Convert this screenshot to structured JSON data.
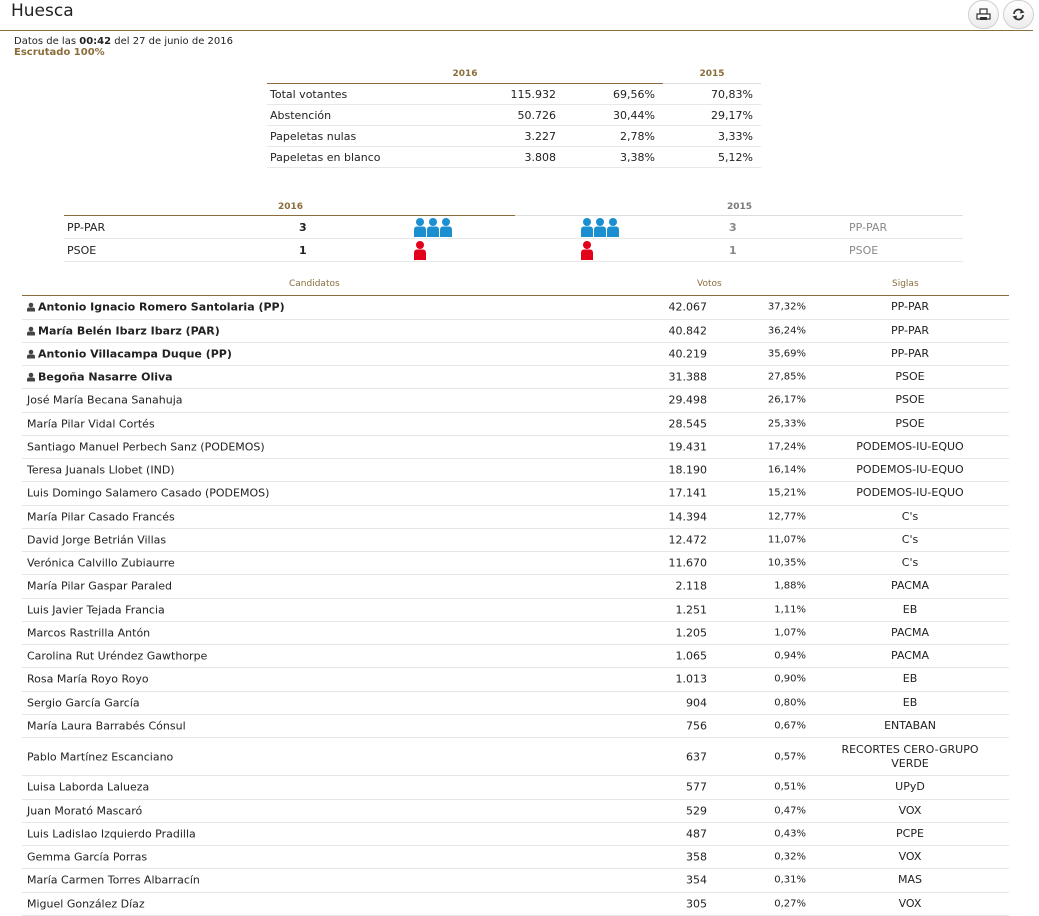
{
  "header": {
    "title": "Huesca",
    "print_icon": "printer-icon",
    "refresh_icon": "refresh-icon"
  },
  "meta": {
    "prefix": "Datos de las",
    "time": "00:42",
    "suffix": "del 27 de junio de 2016",
    "status": "Escrutado 100%"
  },
  "summary": {
    "year_current": "2016",
    "year_previous": "2015",
    "rows": [
      {
        "label": "Total votantes",
        "value": "115.932",
        "pct": "69,56%",
        "pct_prev": "70,83%"
      },
      {
        "label": "Abstención",
        "value": "50.726",
        "pct": "30,44%",
        "pct_prev": "29,17%"
      },
      {
        "label": "Papeletas nulas",
        "value": "3.227",
        "pct": "2,78%",
        "pct_prev": "3,33%"
      },
      {
        "label": "Papeletas en blanco",
        "value": "3.808",
        "pct": "3,38%",
        "pct_prev": "5,12%"
      }
    ]
  },
  "seats": {
    "year_current": "2016",
    "year_previous": "2015",
    "colors": {
      "PP-PAR": "#1b8fd0",
      "PSOE": "#e3001b"
    },
    "rows": [
      {
        "party": "PP-PAR",
        "seats": "3",
        "icons": 3,
        "seats_prev": "3",
        "icons_prev": 3,
        "party_prev": "PP-PAR"
      },
      {
        "party": "PSOE",
        "seats": "1",
        "icons": 1,
        "seats_prev": "1",
        "icons_prev": 1,
        "party_prev": "PSOE"
      }
    ]
  },
  "candidates": {
    "headers": {
      "name": "Candidatos",
      "votes": "Votos",
      "party": "Siglas"
    },
    "rows": [
      {
        "name": "Antonio Ignacio Romero Santolaria (PP)",
        "votes": "42.067",
        "pct": "37,32%",
        "party": "PP-PAR",
        "elected": true
      },
      {
        "name": "María Belén Ibarz Ibarz (PAR)",
        "votes": "40.842",
        "pct": "36,24%",
        "party": "PP-PAR",
        "elected": true
      },
      {
        "name": "Antonio Villacampa Duque (PP)",
        "votes": "40.219",
        "pct": "35,69%",
        "party": "PP-PAR",
        "elected": true
      },
      {
        "name": "Begoña Nasarre Oliva",
        "votes": "31.388",
        "pct": "27,85%",
        "party": "PSOE",
        "elected": true
      },
      {
        "name": "José María Becana Sanahuja",
        "votes": "29.498",
        "pct": "26,17%",
        "party": "PSOE",
        "elected": false
      },
      {
        "name": "María Pilar Vidal Cortés",
        "votes": "28.545",
        "pct": "25,33%",
        "party": "PSOE",
        "elected": false
      },
      {
        "name": "Santiago Manuel Perbech Sanz (PODEMOS)",
        "votes": "19.431",
        "pct": "17,24%",
        "party": "PODEMOS-IU-EQUO",
        "elected": false
      },
      {
        "name": "Teresa Juanals Llobet (IND)",
        "votes": "18.190",
        "pct": "16,14%",
        "party": "PODEMOS-IU-EQUO",
        "elected": false
      },
      {
        "name": "Luis Domingo Salamero Casado (PODEMOS)",
        "votes": "17.141",
        "pct": "15,21%",
        "party": "PODEMOS-IU-EQUO",
        "elected": false
      },
      {
        "name": "María Pilar Casado Francés",
        "votes": "14.394",
        "pct": "12,77%",
        "party": "C's",
        "elected": false
      },
      {
        "name": "David Jorge Betrián Villas",
        "votes": "12.472",
        "pct": "11,07%",
        "party": "C's",
        "elected": false
      },
      {
        "name": "Verónica Calvillo Zubiaurre",
        "votes": "11.670",
        "pct": "10,35%",
        "party": "C's",
        "elected": false
      },
      {
        "name": "María Pilar Gaspar Paraled",
        "votes": "2.118",
        "pct": "1,88%",
        "party": "PACMA",
        "elected": false
      },
      {
        "name": "Luis Javier Tejada Francia",
        "votes": "1.251",
        "pct": "1,11%",
        "party": "EB",
        "elected": false
      },
      {
        "name": "Marcos Rastrilla Antón",
        "votes": "1.205",
        "pct": "1,07%",
        "party": "PACMA",
        "elected": false
      },
      {
        "name": "Carolina Rut Uréndez Gawthorpe",
        "votes": "1.065",
        "pct": "0,94%",
        "party": "PACMA",
        "elected": false
      },
      {
        "name": "Rosa María Royo Royo",
        "votes": "1.013",
        "pct": "0,90%",
        "party": "EB",
        "elected": false
      },
      {
        "name": "Sergio García García",
        "votes": "904",
        "pct": "0,80%",
        "party": "EB",
        "elected": false
      },
      {
        "name": "María Laura Barrabés Cónsul",
        "votes": "756",
        "pct": "0,67%",
        "party": "ENTABAN",
        "elected": false
      },
      {
        "name": "Pablo Martínez Escanciano",
        "votes": "637",
        "pct": "0,57%",
        "party": "RECORTES CERO-GRUPO VERDE",
        "elected": false
      },
      {
        "name": "Luisa Laborda Lalueza",
        "votes": "577",
        "pct": "0,51%",
        "party": "UPyD",
        "elected": false
      },
      {
        "name": "Juan Morató Mascaró",
        "votes": "529",
        "pct": "0,47%",
        "party": "VOX",
        "elected": false
      },
      {
        "name": "Luis Ladislao Izquierdo Pradilla",
        "votes": "487",
        "pct": "0,43%",
        "party": "PCPE",
        "elected": false
      },
      {
        "name": "Gemma García Porras",
        "votes": "358",
        "pct": "0,32%",
        "party": "VOX",
        "elected": false
      },
      {
        "name": "María Carmen Torres Albarracín",
        "votes": "354",
        "pct": "0,31%",
        "party": "MAS",
        "elected": false
      },
      {
        "name": "Miguel González Díaz",
        "votes": "305",
        "pct": "0,27%",
        "party": "VOX",
        "elected": false
      }
    ]
  }
}
